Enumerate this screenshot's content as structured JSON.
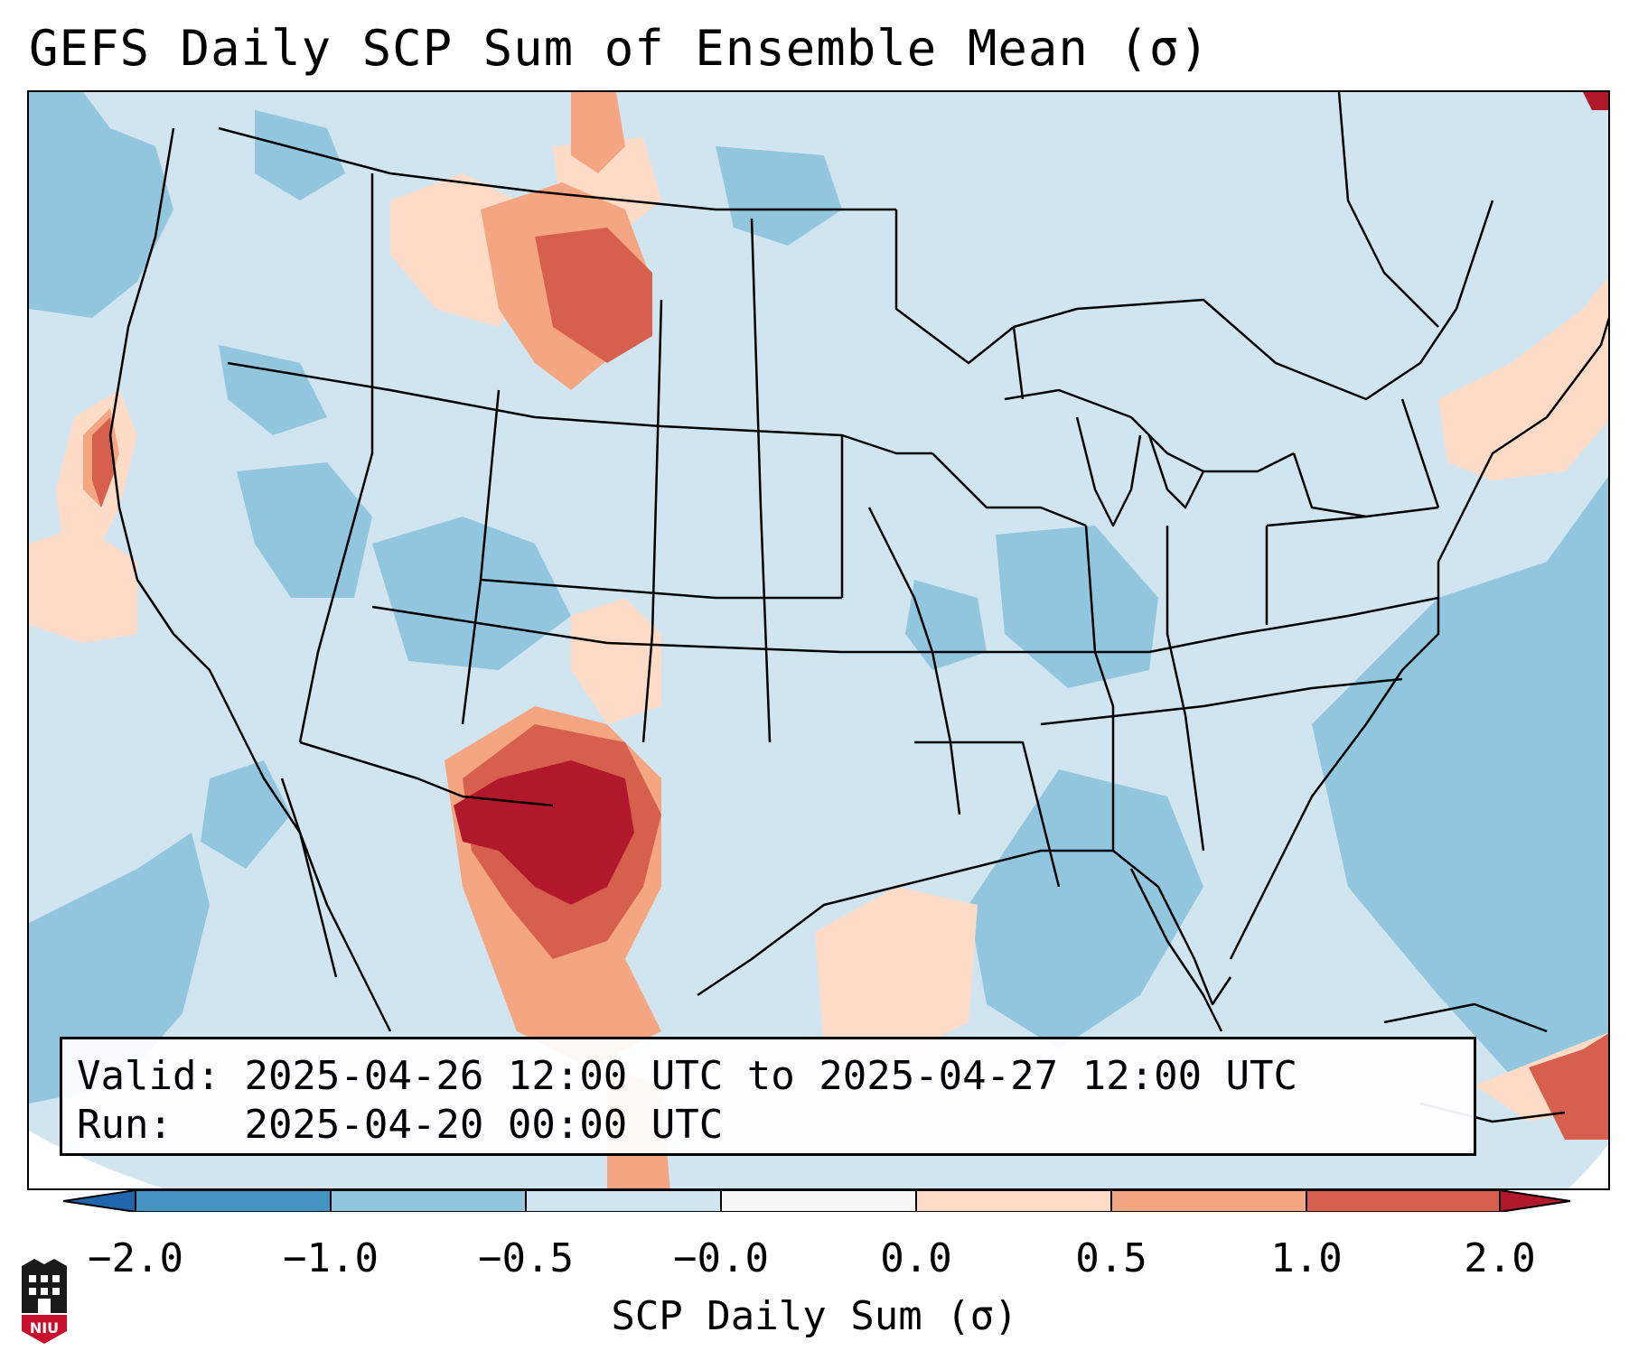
{
  "title": "GEFS Daily SCP Sum of Ensemble Mean (σ)",
  "info": {
    "valid_label": "Valid:",
    "valid_text": "2025-04-26 12:00 UTC to 2025-04-27 12:00 UTC",
    "run_label": "Run:",
    "run_text": "2025-04-20 00:00 UTC"
  },
  "colorbar": {
    "label": "SCP Daily Sum (σ)",
    "ticks": [
      "−2.0",
      "−1.0",
      "−0.5",
      "−0.0",
      "0.0",
      "0.5",
      "1.0",
      "2.0"
    ],
    "colors": {
      "under": "#2166ac",
      "bins": [
        "#4393c3",
        "#92c5de",
        "#d1e5f0",
        "#f7f7f7",
        "#fddbc7",
        "#f4a582",
        "#d6604d"
      ],
      "over": "#b2182b"
    }
  },
  "logo": {
    "text": "NIU",
    "color": "#c8102e"
  }
}
